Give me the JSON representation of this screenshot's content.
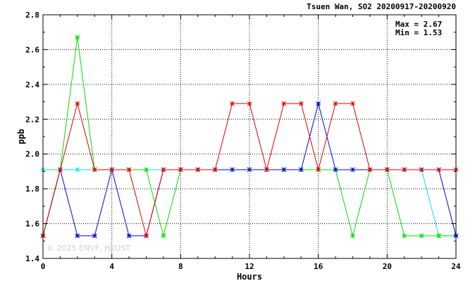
{
  "chart_data": {
    "type": "line",
    "title": "Tsuen Wan, SO2 20200917-20200920",
    "xlabel": "Hours",
    "ylabel": "ppb",
    "xlim": [
      0,
      24
    ],
    "ylim": [
      1.4,
      2.8
    ],
    "xticks": [
      0,
      4,
      8,
      12,
      16,
      20,
      24
    ],
    "yticks": [
      1.4,
      1.6,
      1.8,
      2.0,
      2.2,
      2.4,
      2.6,
      2.8
    ],
    "xtick_labels": [
      "0",
      "4",
      "8",
      "12",
      "16",
      "20",
      "24"
    ],
    "ytick_labels": [
      "1.4",
      "1.6",
      "1.8",
      "2.0",
      "2.2",
      "2.4",
      "2.6",
      "2.8"
    ],
    "grid": true,
    "stats": {
      "max_label": "Max = 2.67",
      "min_label": "Min = 1.53"
    },
    "watermark": "© 2025  ENVF, HKUST",
    "x": [
      0,
      1,
      2,
      3,
      4,
      5,
      6,
      7,
      8,
      9,
      10,
      11,
      12,
      13,
      14,
      15,
      16,
      17,
      18,
      19,
      20,
      21,
      22,
      23,
      24
    ],
    "series": [
      {
        "color": "#00e5e5",
        "values": [
          1.91,
          1.91,
          1.91,
          1.91,
          1.91,
          1.91,
          1.91,
          1.91,
          1.91,
          1.91,
          1.91,
          1.91,
          1.91,
          1.91,
          1.91,
          1.91,
          1.91,
          1.91,
          1.91,
          1.91,
          1.91,
          1.91,
          1.91,
          1.53,
          1.53
        ]
      },
      {
        "color": "#00e000",
        "values": [
          1.53,
          1.91,
          2.67,
          1.91,
          1.91,
          1.91,
          1.91,
          1.53,
          1.91,
          1.91,
          1.91,
          1.91,
          1.91,
          1.91,
          1.91,
          1.91,
          1.91,
          1.91,
          1.53,
          1.91,
          1.91,
          1.53,
          1.53,
          1.53,
          1.53
        ]
      },
      {
        "color": "#0000e0",
        "values": [
          1.53,
          1.91,
          1.53,
          1.53,
          1.91,
          1.53,
          1.53,
          1.91,
          1.91,
          1.91,
          1.91,
          1.91,
          1.91,
          1.91,
          1.91,
          1.91,
          2.29,
          1.91,
          1.91,
          1.91,
          1.91,
          1.91,
          1.91,
          1.91,
          1.53
        ]
      },
      {
        "color": "#e00000",
        "values": [
          1.53,
          1.91,
          2.29,
          1.91,
          1.91,
          1.91,
          1.53,
          1.91,
          1.91,
          1.91,
          1.91,
          2.29,
          2.29,
          1.91,
          2.29,
          2.29,
          1.91,
          2.29,
          2.29,
          1.91,
          1.91,
          1.91,
          1.91,
          1.91,
          1.91
        ]
      }
    ]
  }
}
